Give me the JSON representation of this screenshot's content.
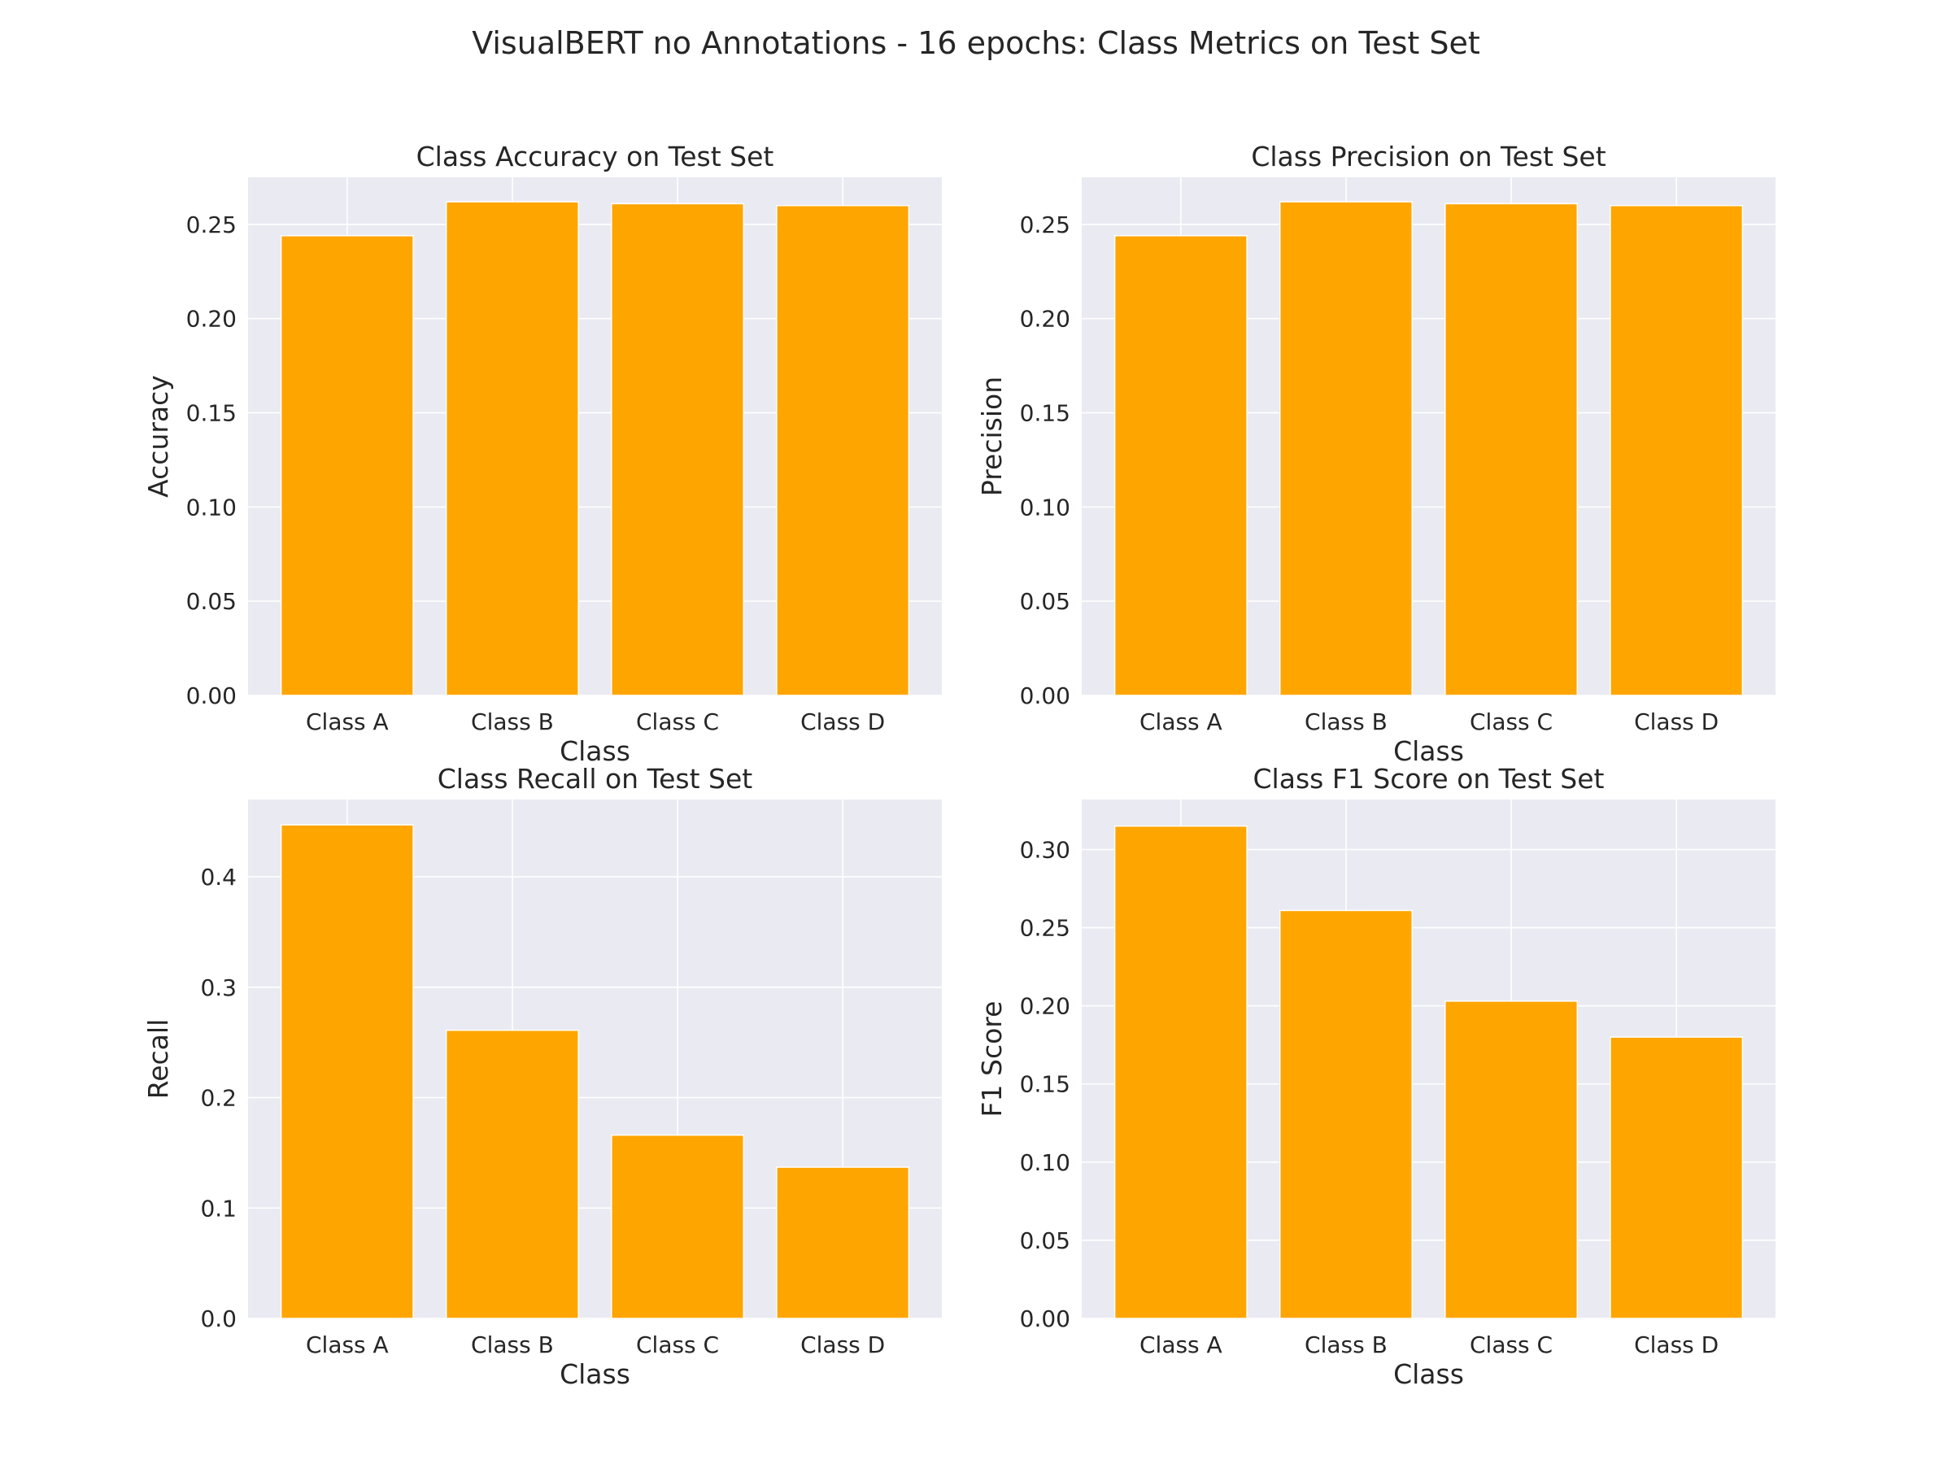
{
  "figure": {
    "title": "VisualBERT no Annotations - 16 epochs: Class Metrics on Test Set"
  },
  "colors": {
    "bar": "#FFA500",
    "plot_background": "#EAEAF2",
    "grid": "#FFFFFF",
    "text": "#262626"
  },
  "chart_data": [
    {
      "type": "bar",
      "title": "Class Accuracy on Test Set",
      "xlabel": "Class",
      "ylabel": "Accuracy",
      "categories": [
        "Class A",
        "Class B",
        "Class C",
        "Class D"
      ],
      "values": [
        0.244,
        0.262,
        0.261,
        0.26
      ],
      "ylim": [
        0,
        0.275
      ],
      "yticks": [
        "0.00",
        "0.05",
        "0.10",
        "0.15",
        "0.20",
        "0.25"
      ],
      "grid": true
    },
    {
      "type": "bar",
      "title": "Class Precision on Test Set",
      "xlabel": "Class",
      "ylabel": "Precision",
      "categories": [
        "Class A",
        "Class B",
        "Class C",
        "Class D"
      ],
      "values": [
        0.244,
        0.262,
        0.261,
        0.26
      ],
      "ylim": [
        0,
        0.275
      ],
      "yticks": [
        "0.00",
        "0.05",
        "0.10",
        "0.15",
        "0.20",
        "0.25"
      ],
      "grid": true
    },
    {
      "type": "bar",
      "title": "Class Recall on Test Set",
      "xlabel": "Class",
      "ylabel": "Recall",
      "categories": [
        "Class A",
        "Class B",
        "Class C",
        "Class D"
      ],
      "values": [
        0.447,
        0.261,
        0.166,
        0.137
      ],
      "ylim": [
        0,
        0.47
      ],
      "yticks": [
        "0.0",
        "0.1",
        "0.2",
        "0.3",
        "0.4"
      ],
      "grid": true
    },
    {
      "type": "bar",
      "title": "Class F1 Score on Test Set",
      "xlabel": "Class",
      "ylabel": "F1 Score",
      "categories": [
        "Class A",
        "Class B",
        "Class C",
        "Class D"
      ],
      "values": [
        0.315,
        0.261,
        0.203,
        0.18
      ],
      "ylim": [
        0,
        0.332
      ],
      "yticks": [
        "0.00",
        "0.05",
        "0.10",
        "0.15",
        "0.20",
        "0.25",
        "0.30"
      ],
      "grid": true
    }
  ]
}
